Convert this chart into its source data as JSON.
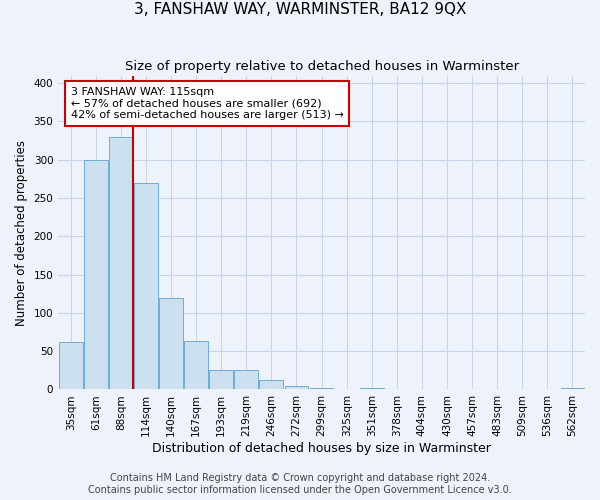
{
  "title": "3, FANSHAW WAY, WARMINSTER, BA12 9QX",
  "subtitle": "Size of property relative to detached houses in Warminster",
  "xlabel": "Distribution of detached houses by size in Warminster",
  "ylabel": "Number of detached properties",
  "categories": [
    "35sqm",
    "61sqm",
    "88sqm",
    "114sqm",
    "140sqm",
    "167sqm",
    "193sqm",
    "219sqm",
    "246sqm",
    "272sqm",
    "299sqm",
    "325sqm",
    "351sqm",
    "378sqm",
    "404sqm",
    "430sqm",
    "457sqm",
    "483sqm",
    "509sqm",
    "536sqm",
    "562sqm"
  ],
  "values": [
    62,
    300,
    330,
    270,
    120,
    63,
    26,
    25,
    13,
    5,
    2,
    0,
    2,
    0,
    0,
    0,
    0,
    0,
    0,
    0,
    2
  ],
  "bar_color": "#cce0f0",
  "bar_edgecolor": "#6baed6",
  "grid_color": "#c8d4e8",
  "background_color": "#eef2fa",
  "vline_x": 3.0,
  "vline_color": "#cc0000",
  "annotation_text": "3 FANSHAW WAY: 115sqm\n← 57% of detached houses are smaller (692)\n42% of semi-detached houses are larger (513) →",
  "annotation_bbox_color": "white",
  "annotation_bbox_edgecolor": "#cc0000",
  "ylim": [
    0,
    410
  ],
  "yticks": [
    0,
    50,
    100,
    150,
    200,
    250,
    300,
    350,
    400
  ],
  "footer": "Contains HM Land Registry data © Crown copyright and database right 2024.\nContains public sector information licensed under the Open Government Licence v3.0.",
  "title_fontsize": 11,
  "subtitle_fontsize": 9.5,
  "xlabel_fontsize": 9,
  "ylabel_fontsize": 8.5,
  "tick_fontsize": 7.5,
  "annotation_fontsize": 8,
  "footer_fontsize": 7
}
